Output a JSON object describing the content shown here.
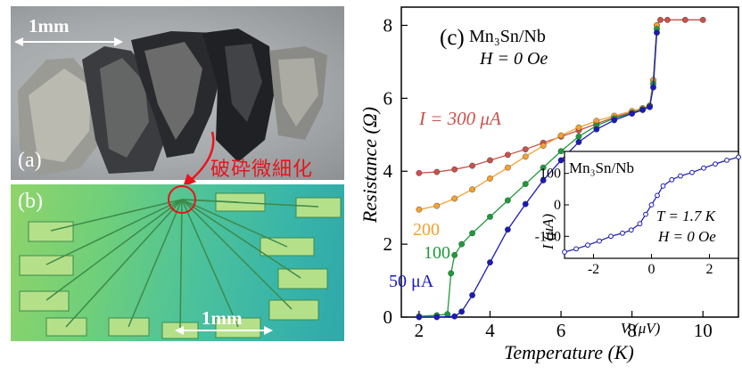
{
  "panel_a": {
    "label": "(a)",
    "scale_bar": "1mm"
  },
  "panel_b": {
    "label": "(b)",
    "scale_bar": "1mm"
  },
  "annotation": "破砕微細化",
  "colors": {
    "red_note": "#e8141c",
    "s300": "#c8524a",
    "s200": "#f5a030",
    "s100": "#1e9a3a",
    "s50": "#1a1ab8"
  },
  "chart_data": [
    {
      "type": "scatter",
      "panel_label": "(c)",
      "title_line1": "Mn₃Sn/Nb",
      "title_line2": "H = 0 Oe",
      "xlabel": "Temperature (K)",
      "ylabel": "Resistance (Ω)",
      "xlim": [
        1.5,
        11
      ],
      "ylim": [
        0,
        8.5
      ],
      "xticks": [
        2,
        4,
        6,
        8,
        10
      ],
      "yticks": [
        0,
        2,
        4,
        6,
        8
      ],
      "series": [
        {
          "name": "I = 300 μA",
          "color": "#c8524a",
          "x": [
            2.0,
            2.5,
            3.0,
            3.5,
            4.0,
            4.5,
            5.0,
            5.5,
            6.0,
            6.5,
            7.0,
            7.5,
            8.0,
            8.3,
            8.5,
            8.6,
            8.7,
            8.8,
            9.0,
            9.5,
            10.0
          ],
          "y": [
            3.95,
            3.98,
            4.05,
            4.15,
            4.3,
            4.45,
            4.6,
            4.78,
            4.95,
            5.12,
            5.3,
            5.48,
            5.62,
            5.72,
            5.8,
            6.5,
            8.0,
            8.15,
            8.15,
            8.15,
            8.15
          ]
        },
        {
          "name": "200",
          "color": "#f5a030",
          "x": [
            2.0,
            2.5,
            3.0,
            3.5,
            4.0,
            4.5,
            5.0,
            5.5,
            6.0,
            6.5,
            7.0,
            7.5,
            8.0,
            8.3,
            8.5,
            8.6,
            8.7
          ],
          "y": [
            2.95,
            3.05,
            3.25,
            3.5,
            3.8,
            4.1,
            4.4,
            4.7,
            4.98,
            5.2,
            5.38,
            5.52,
            5.65,
            5.73,
            5.8,
            6.5,
            8.0
          ]
        },
        {
          "name": "100",
          "color": "#1e9a3a",
          "x": [
            2.0,
            2.5,
            2.8,
            2.9,
            3.0,
            3.2,
            3.5,
            4.0,
            4.5,
            5.0,
            5.5,
            6.0,
            6.5,
            7.0,
            7.5,
            8.0,
            8.3,
            8.5,
            8.6,
            8.7
          ],
          "y": [
            0.02,
            0.05,
            0.08,
            1.2,
            1.7,
            2.0,
            2.3,
            2.75,
            3.2,
            3.65,
            4.1,
            4.55,
            4.95,
            5.25,
            5.45,
            5.6,
            5.7,
            5.78,
            6.4,
            7.9
          ]
        },
        {
          "name": "50 μA",
          "color": "#1a1ab8",
          "x": [
            2.0,
            2.5,
            3.0,
            3.2,
            3.5,
            4.0,
            4.5,
            5.0,
            5.5,
            6.0,
            6.5,
            7.0,
            7.5,
            8.0,
            8.3,
            8.5,
            8.6,
            8.7
          ],
          "y": [
            0.0,
            0.0,
            0.02,
            0.15,
            0.6,
            1.5,
            2.4,
            3.1,
            3.75,
            4.3,
            4.8,
            5.15,
            5.4,
            5.58,
            5.68,
            5.76,
            6.3,
            7.8
          ]
        }
      ]
    },
    {
      "type": "scatter",
      "title": "Mn₃Sn/Nb",
      "annotation_line1": "T = 1.7 K",
      "annotation_line2": "H = 0 Oe",
      "xlabel": "V (μV)",
      "ylabel": "I (μA)",
      "xlim": [
        -3,
        3
      ],
      "ylim": [
        -170,
        170
      ],
      "xticks": [
        -2,
        0,
        2
      ],
      "yticks": [
        -100,
        0,
        100
      ],
      "series": [
        {
          "color": "#1a1ab8",
          "x": [
            -3.0,
            -2.6,
            -2.2,
            -1.8,
            -1.4,
            -1.0,
            -0.7,
            -0.4,
            -0.2,
            0.0,
            0.2,
            0.4,
            0.7,
            1.0,
            1.4,
            1.8,
            2.2,
            2.6,
            3.0
          ],
          "y": [
            -150,
            -140,
            -128,
            -115,
            -100,
            -90,
            -80,
            -60,
            -30,
            0,
            30,
            60,
            80,
            92,
            103,
            117,
            130,
            142,
            152
          ]
        }
      ]
    }
  ]
}
